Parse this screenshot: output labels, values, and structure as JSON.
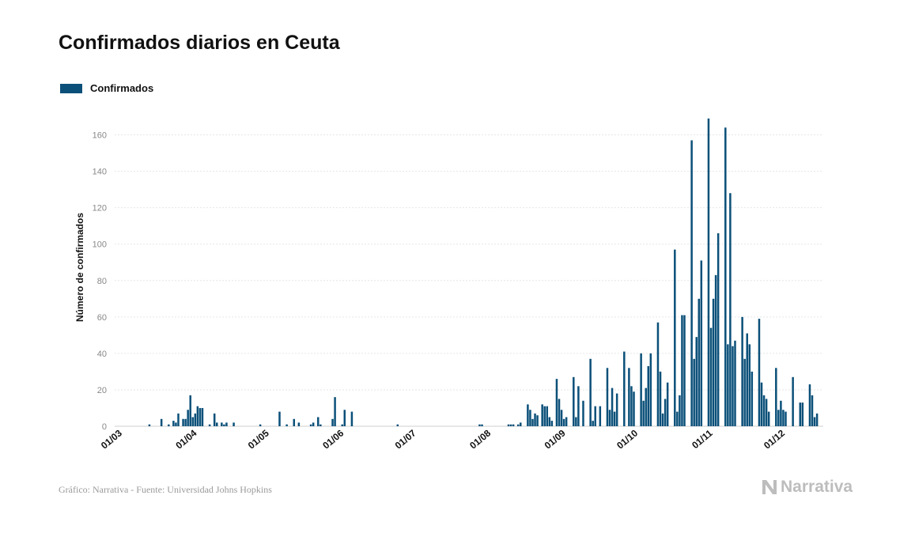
{
  "chart_data": {
    "type": "bar",
    "title": "Confirmados diarios en Ceuta",
    "xlabel": "",
    "ylabel": "Número de confirmados",
    "ylim": [
      0,
      175
    ],
    "yticks": [
      0,
      20,
      40,
      60,
      80,
      100,
      120,
      140,
      160
    ],
    "x_start": "2020-03-01",
    "x_end": "2020-12-20",
    "xtick_labels": [
      "01/03",
      "01/04",
      "01/05",
      "01/06",
      "01/07",
      "01/08",
      "01/09",
      "01/10",
      "01/11",
      "01/12"
    ],
    "xtick_dates": [
      "2020-03-01",
      "2020-04-01",
      "2020-05-01",
      "2020-06-01",
      "2020-07-01",
      "2020-08-01",
      "2020-09-01",
      "2020-10-01",
      "2020-11-01",
      "2020-12-01"
    ],
    "grid": true,
    "legend_position": "top-left",
    "series": [
      {
        "name": "Confirmados",
        "color": "#0b5079",
        "points": [
          [
            "2020-03-15",
            1
          ],
          [
            "2020-03-20",
            4
          ],
          [
            "2020-03-23",
            1
          ],
          [
            "2020-03-25",
            3
          ],
          [
            "2020-03-26",
            2
          ],
          [
            "2020-03-27",
            7
          ],
          [
            "2020-03-29",
            4
          ],
          [
            "2020-03-30",
            4
          ],
          [
            "2020-03-31",
            9
          ],
          [
            "2020-04-01",
            17
          ],
          [
            "2020-04-02",
            5
          ],
          [
            "2020-04-03",
            7
          ],
          [
            "2020-04-04",
            11
          ],
          [
            "2020-04-05",
            10
          ],
          [
            "2020-04-06",
            10
          ],
          [
            "2020-04-09",
            1
          ],
          [
            "2020-04-11",
            7
          ],
          [
            "2020-04-12",
            2
          ],
          [
            "2020-04-14",
            2
          ],
          [
            "2020-04-15",
            1
          ],
          [
            "2020-04-16",
            2
          ],
          [
            "2020-04-19",
            2
          ],
          [
            "2020-04-30",
            1
          ],
          [
            "2020-05-08",
            8
          ],
          [
            "2020-05-11",
            1
          ],
          [
            "2020-05-14",
            4
          ],
          [
            "2020-05-16",
            2
          ],
          [
            "2020-05-21",
            1
          ],
          [
            "2020-05-22",
            2
          ],
          [
            "2020-05-24",
            5
          ],
          [
            "2020-05-25",
            1
          ],
          [
            "2020-05-30",
            4
          ],
          [
            "2020-05-31",
            16
          ],
          [
            "2020-06-03",
            1
          ],
          [
            "2020-06-04",
            9
          ],
          [
            "2020-06-07",
            8
          ],
          [
            "2020-06-26",
            1
          ],
          [
            "2020-07-30",
            1
          ],
          [
            "2020-07-31",
            1
          ],
          [
            "2020-08-11",
            1
          ],
          [
            "2020-08-12",
            1
          ],
          [
            "2020-08-13",
            1
          ],
          [
            "2020-08-15",
            1
          ],
          [
            "2020-08-16",
            2
          ],
          [
            "2020-08-19",
            12
          ],
          [
            "2020-08-20",
            9
          ],
          [
            "2020-08-21",
            4
          ],
          [
            "2020-08-22",
            7
          ],
          [
            "2020-08-23",
            6
          ],
          [
            "2020-08-25",
            12
          ],
          [
            "2020-08-26",
            11
          ],
          [
            "2020-08-27",
            11
          ],
          [
            "2020-08-28",
            5
          ],
          [
            "2020-08-29",
            3
          ],
          [
            "2020-08-31",
            26
          ],
          [
            "2020-09-01",
            15
          ],
          [
            "2020-09-02",
            9
          ],
          [
            "2020-09-03",
            4
          ],
          [
            "2020-09-04",
            5
          ],
          [
            "2020-09-07",
            27
          ],
          [
            "2020-09-08",
            5
          ],
          [
            "2020-09-09",
            22
          ],
          [
            "2020-09-11",
            14
          ],
          [
            "2020-09-14",
            37
          ],
          [
            "2020-09-15",
            3
          ],
          [
            "2020-09-16",
            11
          ],
          [
            "2020-09-18",
            11
          ],
          [
            "2020-09-21",
            32
          ],
          [
            "2020-09-22",
            9
          ],
          [
            "2020-09-23",
            21
          ],
          [
            "2020-09-24",
            8
          ],
          [
            "2020-09-25",
            18
          ],
          [
            "2020-09-28",
            41
          ],
          [
            "2020-09-30",
            32
          ],
          [
            "2020-10-01",
            22
          ],
          [
            "2020-10-02",
            19
          ],
          [
            "2020-10-05",
            40
          ],
          [
            "2020-10-06",
            14
          ],
          [
            "2020-10-07",
            21
          ],
          [
            "2020-10-08",
            33
          ],
          [
            "2020-10-09",
            40
          ],
          [
            "2020-10-12",
            57
          ],
          [
            "2020-10-13",
            30
          ],
          [
            "2020-10-14",
            7
          ],
          [
            "2020-10-15",
            15
          ],
          [
            "2020-10-16",
            24
          ],
          [
            "2020-10-19",
            97
          ],
          [
            "2020-10-20",
            8
          ],
          [
            "2020-10-21",
            17
          ],
          [
            "2020-10-22",
            61
          ],
          [
            "2020-10-23",
            61
          ],
          [
            "2020-10-26",
            157
          ],
          [
            "2020-10-27",
            37
          ],
          [
            "2020-10-28",
            49
          ],
          [
            "2020-10-29",
            70
          ],
          [
            "2020-10-30",
            91
          ],
          [
            "2020-11-02",
            169
          ],
          [
            "2020-11-03",
            54
          ],
          [
            "2020-11-04",
            70
          ],
          [
            "2020-11-05",
            83
          ],
          [
            "2020-11-06",
            106
          ],
          [
            "2020-11-09",
            164
          ],
          [
            "2020-11-10",
            45
          ],
          [
            "2020-11-11",
            128
          ],
          [
            "2020-11-12",
            44
          ],
          [
            "2020-11-13",
            47
          ],
          [
            "2020-11-16",
            60
          ],
          [
            "2020-11-17",
            37
          ],
          [
            "2020-11-18",
            51
          ],
          [
            "2020-11-19",
            45
          ],
          [
            "2020-11-20",
            30
          ],
          [
            "2020-11-23",
            59
          ],
          [
            "2020-11-24",
            24
          ],
          [
            "2020-11-25",
            17
          ],
          [
            "2020-11-26",
            15
          ],
          [
            "2020-11-27",
            8
          ],
          [
            "2020-11-30",
            32
          ],
          [
            "2020-12-01",
            9
          ],
          [
            "2020-12-02",
            14
          ],
          [
            "2020-12-03",
            9
          ],
          [
            "2020-12-04",
            8
          ],
          [
            "2020-12-07",
            27
          ],
          [
            "2020-12-10",
            13
          ],
          [
            "2020-12-11",
            13
          ],
          [
            "2020-12-14",
            23
          ],
          [
            "2020-12-15",
            17
          ],
          [
            "2020-12-16",
            5
          ],
          [
            "2020-12-17",
            7
          ]
        ]
      }
    ]
  },
  "footer": {
    "source": "Gráfico: Narrativa - Fuente: Universidad Johns Hopkins"
  },
  "brand": {
    "name": "Narrativa",
    "logo_icon": "narrativa-n-logo-icon",
    "color": "#bdbdbd"
  }
}
